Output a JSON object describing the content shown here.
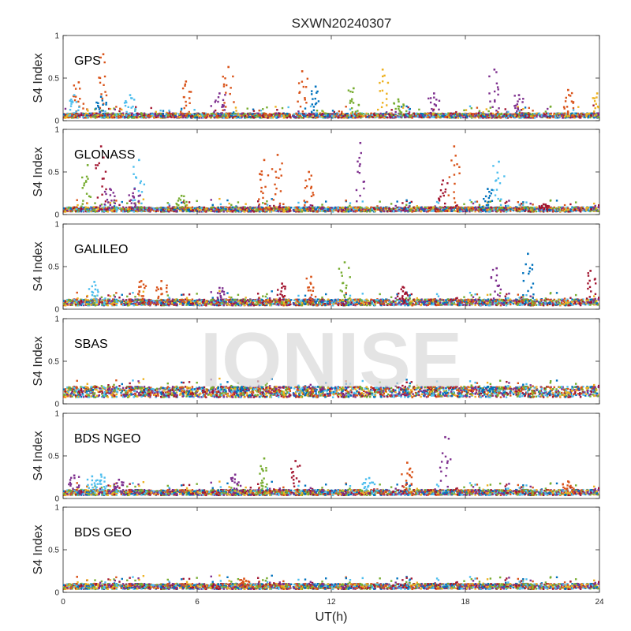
{
  "chart_data": {
    "type": "scatter",
    "title": "SXWN20240307",
    "xlabel": "UT(h)",
    "ylabel": "S4 Index",
    "xlim": [
      0,
      24
    ],
    "ylim": [
      0,
      1
    ],
    "x_ticks": [
      0,
      6,
      12,
      18,
      24
    ],
    "y_ticks": [
      0,
      0.5,
      1
    ],
    "y_tick_labels": [
      "0",
      "0.5",
      "1"
    ],
    "grid": false,
    "watermark": "IONISE",
    "colors": [
      "#0072BD",
      "#D95319",
      "#EDB120",
      "#7E2F8E",
      "#77AC30",
      "#4DBEEE",
      "#A2142F"
    ],
    "panels": [
      {
        "label": "GPS",
        "baseline": 0.06,
        "spikes": [
          {
            "x": 0.7,
            "y": 0.45,
            "c": 1
          },
          {
            "x": 0.5,
            "y": 0.3,
            "c": 5
          },
          {
            "x": 1.8,
            "y": 0.78,
            "c": 1
          },
          {
            "x": 1.7,
            "y": 0.28,
            "c": 0
          },
          {
            "x": 3.0,
            "y": 0.3,
            "c": 5
          },
          {
            "x": 5.5,
            "y": 0.46,
            "c": 1
          },
          {
            "x": 7.4,
            "y": 0.63,
            "c": 1
          },
          {
            "x": 7.0,
            "y": 0.32,
            "c": 3
          },
          {
            "x": 10.7,
            "y": 0.58,
            "c": 1
          },
          {
            "x": 11.3,
            "y": 0.4,
            "c": 0
          },
          {
            "x": 13.0,
            "y": 0.38,
            "c": 4
          },
          {
            "x": 14.3,
            "y": 0.6,
            "c": 2
          },
          {
            "x": 15.0,
            "y": 0.25,
            "c": 4
          },
          {
            "x": 16.6,
            "y": 0.32,
            "c": 3
          },
          {
            "x": 19.3,
            "y": 0.6,
            "c": 3
          },
          {
            "x": 20.4,
            "y": 0.3,
            "c": 3
          },
          {
            "x": 22.6,
            "y": 0.36,
            "c": 1
          },
          {
            "x": 23.9,
            "y": 0.32,
            "c": 2
          }
        ]
      },
      {
        "label": "GLONASS",
        "baseline": 0.06,
        "spikes": [
          {
            "x": 1.1,
            "y": 0.58,
            "c": 4
          },
          {
            "x": 1.7,
            "y": 0.8,
            "c": 6
          },
          {
            "x": 2.1,
            "y": 0.3,
            "c": 3
          },
          {
            "x": 3.4,
            "y": 0.64,
            "c": 5
          },
          {
            "x": 3.2,
            "y": 0.3,
            "c": 3
          },
          {
            "x": 5.3,
            "y": 0.22,
            "c": 4
          },
          {
            "x": 9.0,
            "y": 0.64,
            "c": 1
          },
          {
            "x": 9.6,
            "y": 0.7,
            "c": 1
          },
          {
            "x": 11.0,
            "y": 0.5,
            "c": 1
          },
          {
            "x": 13.3,
            "y": 0.84,
            "c": 3
          },
          {
            "x": 17.5,
            "y": 0.8,
            "c": 1
          },
          {
            "x": 17.0,
            "y": 0.4,
            "c": 6
          },
          {
            "x": 19.5,
            "y": 0.62,
            "c": 5
          },
          {
            "x": 19.0,
            "y": 0.3,
            "c": 0
          },
          {
            "x": 21.5,
            "y": 0.12,
            "c": 6
          }
        ]
      },
      {
        "label": "GALILEO",
        "baseline": 0.08,
        "spikes": [
          {
            "x": 1.4,
            "y": 0.32,
            "c": 5
          },
          {
            "x": 3.5,
            "y": 0.33,
            "c": 1
          },
          {
            "x": 4.4,
            "y": 0.33,
            "c": 1
          },
          {
            "x": 7.0,
            "y": 0.25,
            "c": 3
          },
          {
            "x": 9.8,
            "y": 0.3,
            "c": 6
          },
          {
            "x": 11.1,
            "y": 0.38,
            "c": 1
          },
          {
            "x": 12.6,
            "y": 0.55,
            "c": 4
          },
          {
            "x": 15.2,
            "y": 0.26,
            "c": 6
          },
          {
            "x": 19.4,
            "y": 0.48,
            "c": 3
          },
          {
            "x": 20.8,
            "y": 0.65,
            "c": 0
          },
          {
            "x": 23.6,
            "y": 0.45,
            "c": 6
          }
        ]
      },
      {
        "label": "SBAS",
        "baseline": 0.14,
        "spikes": [
          {
            "x": 8.0,
            "y": 0.2,
            "c": 0
          },
          {
            "x": 19.0,
            "y": 0.2,
            "c": 0
          }
        ]
      },
      {
        "label": "BDS NGEO",
        "baseline": 0.07,
        "spikes": [
          {
            "x": 0.5,
            "y": 0.27,
            "c": 3
          },
          {
            "x": 1.3,
            "y": 0.26,
            "c": 5
          },
          {
            "x": 1.7,
            "y": 0.28,
            "c": 5
          },
          {
            "x": 2.5,
            "y": 0.22,
            "c": 3
          },
          {
            "x": 7.7,
            "y": 0.28,
            "c": 3
          },
          {
            "x": 9.0,
            "y": 0.47,
            "c": 4
          },
          {
            "x": 10.4,
            "y": 0.44,
            "c": 6
          },
          {
            "x": 13.7,
            "y": 0.24,
            "c": 5
          },
          {
            "x": 15.4,
            "y": 0.42,
            "c": 1
          },
          {
            "x": 17.1,
            "y": 0.72,
            "c": 3
          },
          {
            "x": 22.6,
            "y": 0.2,
            "c": 1
          }
        ]
      },
      {
        "label": "BDS GEO",
        "baseline": 0.07,
        "spikes": [
          {
            "x": 8.1,
            "y": 0.16,
            "c": 1
          }
        ]
      }
    ]
  }
}
